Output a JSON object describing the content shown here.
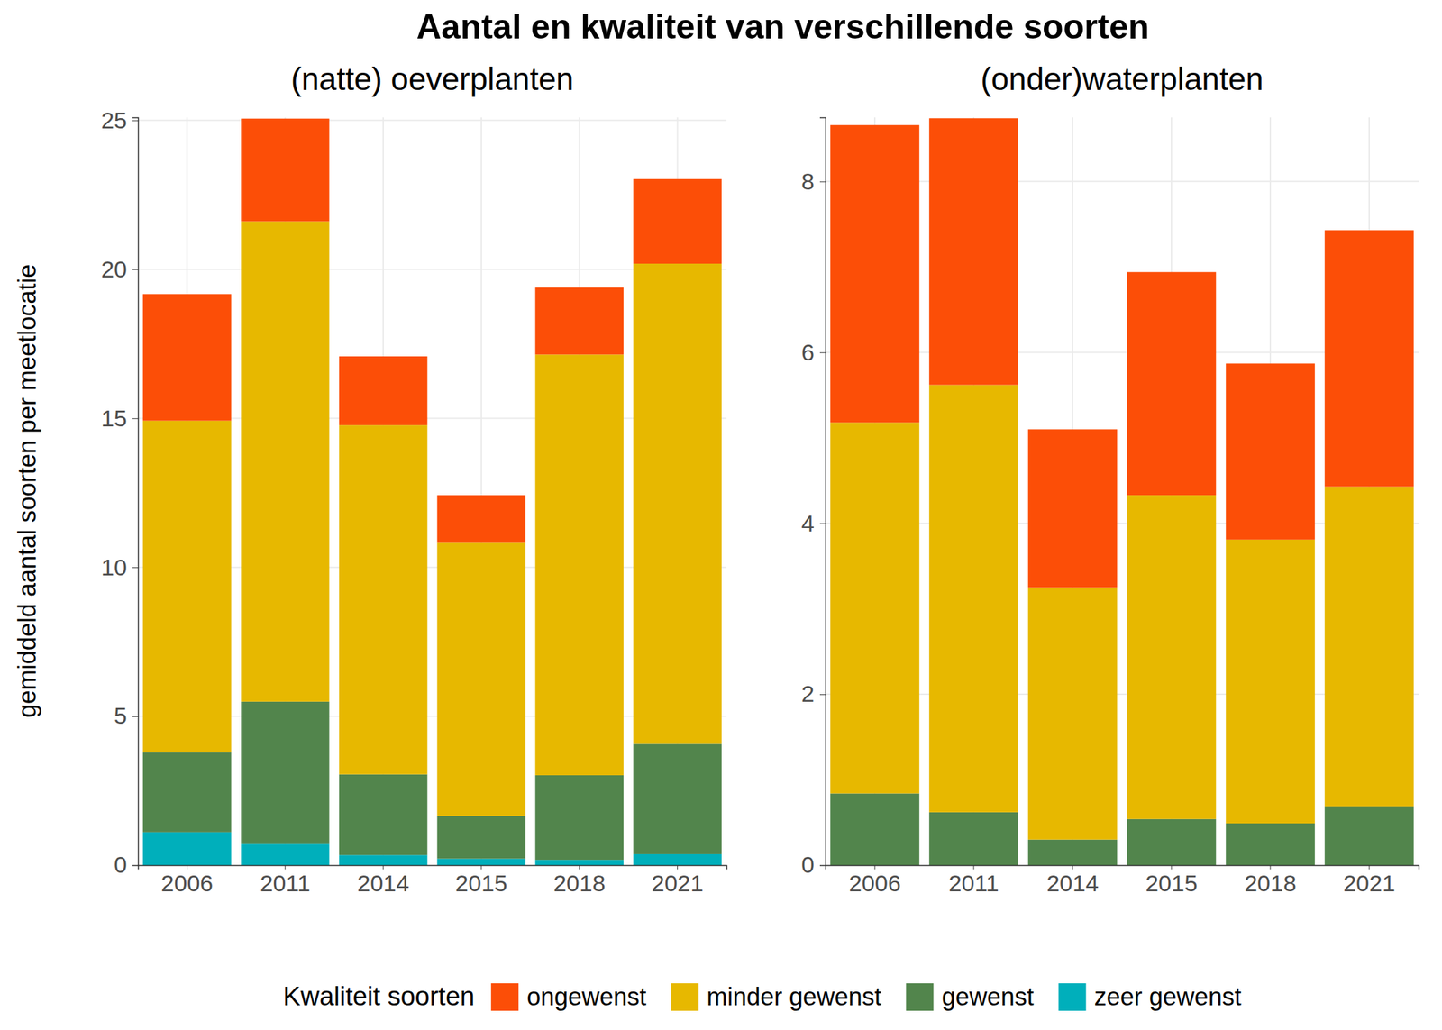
{
  "chart_data": {
    "type": "bar",
    "stacked": true,
    "grid": true,
    "legend": "bottom",
    "title": "Aantal en kwaliteit van verschillende soorten",
    "y_label": "gemiddeld aantal soorten per meetlocatie",
    "legend_title": "Kwaliteit soorten",
    "categories": [
      "2006",
      "2011",
      "2014",
      "2015",
      "2018",
      "2021"
    ],
    "series": [
      {
        "name": "ongewenst",
        "color": "#FC4E07"
      },
      {
        "name": "minder gewenst",
        "color": "#E7B800"
      },
      {
        "name": "gewenst",
        "color": "#52854C"
      },
      {
        "name": "zeer gewenst",
        "color": "#00AFBB"
      }
    ],
    "panels": [
      {
        "title": "(natte) oeverplanten",
        "ylim": [
          0,
          25.1
        ],
        "yticks": [
          0,
          5,
          10,
          15,
          20,
          25
        ],
        "series": [
          {
            "values": [
              4.25,
              3.45,
              2.31,
              1.6,
              2.25,
              2.84
            ]
          },
          {
            "values": [
              11.13,
              16.12,
              11.72,
              9.16,
              14.12,
              16.12
            ]
          },
          {
            "values": [
              2.68,
              4.78,
              2.71,
              1.44,
              2.84,
              3.7
            ]
          },
          {
            "values": [
              1.11,
              0.71,
              0.34,
              0.22,
              0.18,
              0.37
            ]
          }
        ]
      },
      {
        "title": "(onder)waterplanten",
        "ylim": [
          0,
          8.75
        ],
        "yticks": [
          0,
          2,
          4,
          6,
          8
        ],
        "series": [
          {
            "values": [
              3.48,
              3.12,
              1.85,
              2.61,
              2.06,
              3.0
            ]
          },
          {
            "values": [
              4.34,
              5.0,
              2.95,
              3.79,
              3.32,
              3.74
            ]
          },
          {
            "values": [
              0.84,
              0.62,
              0.3,
              0.54,
              0.49,
              0.69
            ]
          },
          {
            "values": [
              0,
              0,
              0,
              0,
              0,
              0
            ]
          }
        ]
      }
    ]
  }
}
